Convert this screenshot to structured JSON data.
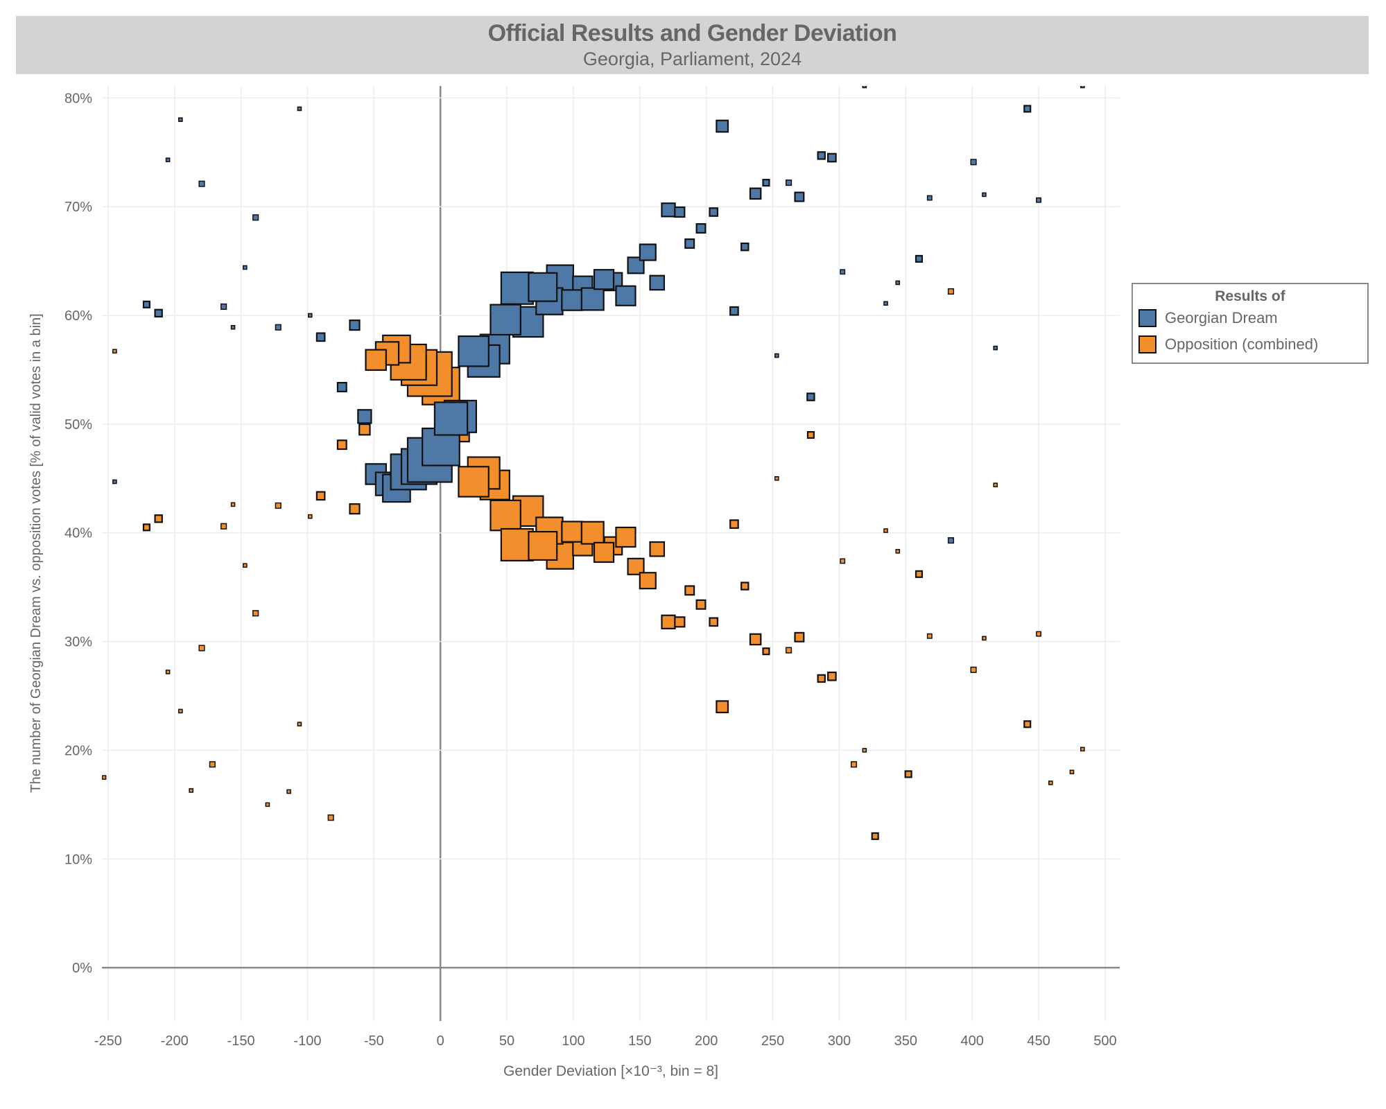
{
  "title": "Official Results and Gender Deviation",
  "subtitle": "Georgia, Parliament, 2024",
  "legend": {
    "title": "Results of",
    "items": [
      {
        "label": "Georgian Dream",
        "color": "#4e79a7"
      },
      {
        "label": "Opposition (combined)",
        "color": "#f28e2b"
      }
    ]
  },
  "chart_data": {
    "type": "scatter",
    "title": "Official Results and Gender Deviation",
    "subtitle": "Georgia, Parliament, 2024",
    "xlabel": "Gender Deviation [×10⁻³, bin = 8]",
    "ylabel": "The number of Georgian Dream vs. opposition votes [% of valid votes in a bin]",
    "xlim": [
      -254.6,
      511
    ],
    "ylim": [
      -4.9,
      81.1
    ],
    "x_ticks": [
      "-250",
      "-200",
      "-150",
      "-100",
      "-50",
      "0",
      "50",
      "100",
      "150",
      "200",
      "250",
      "300",
      "350",
      "400",
      "450",
      "500"
    ],
    "x_tick_values": [
      -250,
      -200,
      -150,
      -100,
      -50,
      0,
      50,
      100,
      150,
      200,
      250,
      300,
      350,
      400,
      450,
      500
    ],
    "y_ticks": [
      "0%",
      "10%",
      "20%",
      "30%",
      "40%",
      "50%",
      "60%",
      "70%",
      "80%"
    ],
    "y_tick_values": [
      0,
      10,
      20,
      30,
      40,
      50,
      60,
      70,
      80
    ],
    "grid": true,
    "legend_position": "right",
    "marker": "square, size proportional to bin weight",
    "series": [
      {
        "name": "Opposition (combined)",
        "color": "#f28e2b",
        "points": [
          [
            -195.5,
            23.6,
            4
          ],
          [
            -205,
            27.2,
            4
          ],
          [
            -179.5,
            29.4,
            6
          ],
          [
            -139,
            32.6,
            6
          ],
          [
            -147,
            37.0,
            4
          ],
          [
            -106,
            22.4,
            4
          ],
          [
            -221,
            40.5,
            7
          ],
          [
            -212,
            41.3,
            8
          ],
          [
            -163,
            40.6,
            6
          ],
          [
            -156,
            42.6,
            4
          ],
          [
            -122,
            42.5,
            6
          ],
          [
            -98,
            41.5,
            4
          ],
          [
            -245,
            56.7,
            4
          ],
          [
            -253,
            17.5,
            4
          ],
          [
            -187.5,
            16.3,
            4
          ],
          [
            -171.5,
            18.7,
            6
          ],
          [
            -130,
            15.0,
            4
          ],
          [
            -114,
            16.2,
            4
          ],
          [
            -82.4,
            13.8,
            6
          ],
          [
            -90,
            43.4,
            9
          ],
          [
            -64.5,
            42.2,
            11
          ],
          [
            -74,
            48.1,
            10
          ],
          [
            -57,
            49.5,
            12
          ],
          [
            8,
            49.4,
            20
          ],
          [
            15,
            49.2,
            20
          ],
          [
            0.4,
            53.5,
            42
          ],
          [
            -8,
            54.6,
            50
          ],
          [
            -16,
            55.2,
            40
          ],
          [
            -24,
            55.7,
            40
          ],
          [
            -33,
            56.9,
            31
          ],
          [
            -40,
            56.5,
            26
          ],
          [
            -48.5,
            55.9,
            23
          ],
          [
            41,
            44.4,
            33
          ],
          [
            32.6,
            45.5,
            36
          ],
          [
            25,
            44.7,
            34
          ],
          [
            66,
            42.0,
            34
          ],
          [
            49,
            41.6,
            34
          ],
          [
            90,
            37.9,
            30
          ],
          [
            82,
            40.2,
            30
          ],
          [
            57.7,
            38.9,
            36
          ],
          [
            77,
            38.8,
            32
          ],
          [
            107,
            38.8,
            22
          ],
          [
            99,
            40.1,
            23
          ],
          [
            114.5,
            40.0,
            25
          ],
          [
            130,
            38.8,
            20
          ],
          [
            123,
            38.2,
            22
          ],
          [
            139.4,
            39.6,
            22
          ],
          [
            147,
            36.9,
            18
          ],
          [
            156,
            35.6,
            18
          ],
          [
            163,
            38.5,
            16
          ],
          [
            212,
            24.0,
            13
          ],
          [
            171.5,
            31.8,
            15
          ],
          [
            180,
            31.8,
            11
          ],
          [
            205.5,
            31.8,
            9
          ],
          [
            187.5,
            34.7,
            10
          ],
          [
            196,
            33.4,
            10
          ],
          [
            237,
            30.2,
            12
          ],
          [
            245,
            29.1,
            7
          ],
          [
            229,
            35.1,
            8
          ],
          [
            270,
            30.4,
            10
          ],
          [
            262,
            29.2,
            6
          ],
          [
            286.6,
            26.6,
            8
          ],
          [
            294.5,
            26.8,
            9
          ],
          [
            221,
            40.8,
            9
          ],
          [
            253,
            45.0,
            4
          ],
          [
            278.6,
            49.0,
            7
          ],
          [
            302.5,
            37.4,
            5
          ],
          [
            319,
            20.0,
            4
          ],
          [
            311,
            18.7,
            6
          ],
          [
            327,
            12.1,
            7
          ],
          [
            335,
            40.2,
            4
          ],
          [
            344,
            38.3,
            4
          ],
          [
            352,
            17.8,
            7
          ],
          [
            360,
            36.2,
            7
          ],
          [
            368,
            30.5,
            5
          ],
          [
            384,
            62.2,
            6
          ],
          [
            401,
            27.4,
            6
          ],
          [
            409,
            30.3,
            4
          ],
          [
            417.5,
            44.4,
            4
          ],
          [
            441.5,
            22.4,
            7
          ],
          [
            450,
            30.7,
            5
          ],
          [
            459,
            17.0,
            4
          ],
          [
            475,
            18.0,
            4
          ],
          [
            483,
            20.1,
            4
          ]
        ]
      },
      {
        "name": "Georgian Dream",
        "color": "#4e79a7",
        "points": [
          [
            -195.5,
            78.0,
            4
          ],
          [
            -205,
            74.3,
            4
          ],
          [
            -179.5,
            72.1,
            6
          ],
          [
            -139,
            69.0,
            6
          ],
          [
            -147,
            64.4,
            4
          ],
          [
            -106,
            79.0,
            4
          ],
          [
            -221,
            61.0,
            7
          ],
          [
            -212,
            60.2,
            8
          ],
          [
            -163,
            60.8,
            6
          ],
          [
            -156,
            58.9,
            4
          ],
          [
            -122,
            58.9,
            6
          ],
          [
            -98,
            60.0,
            4
          ],
          [
            -245,
            44.7,
            4
          ],
          [
            -90,
            58.0,
            9
          ],
          [
            -64.5,
            59.1,
            11
          ],
          [
            -74,
            53.4,
            10
          ],
          [
            -57,
            50.7,
            15
          ],
          [
            -48.5,
            45.4,
            23
          ],
          [
            -40,
            44.5,
            26
          ],
          [
            -33,
            44.1,
            31
          ],
          [
            -24,
            45.6,
            40
          ],
          [
            -16,
            46.1,
            40
          ],
          [
            -8,
            46.7,
            50
          ],
          [
            0.4,
            47.9,
            42
          ],
          [
            15,
            50.7,
            36
          ],
          [
            8,
            50.5,
            37
          ],
          [
            41,
            56.9,
            33
          ],
          [
            32.6,
            55.8,
            36
          ],
          [
            25,
            56.7,
            34
          ],
          [
            66,
            59.4,
            34
          ],
          [
            49,
            59.6,
            34
          ],
          [
            90,
            63.4,
            30
          ],
          [
            82,
            61.3,
            30
          ],
          [
            57.7,
            62.5,
            36
          ],
          [
            77,
            62.6,
            32
          ],
          [
            107,
            62.7,
            22
          ],
          [
            99,
            61.4,
            23
          ],
          [
            114.5,
            61.5,
            25
          ],
          [
            130,
            63.1,
            20
          ],
          [
            123,
            63.3,
            22
          ],
          [
            139.4,
            61.8,
            22
          ],
          [
            147,
            64.6,
            18
          ],
          [
            156,
            65.8,
            18
          ],
          [
            163,
            63.0,
            16
          ],
          [
            212,
            77.4,
            13
          ],
          [
            171.5,
            69.7,
            15
          ],
          [
            180,
            69.5,
            11
          ],
          [
            205.5,
            69.5,
            9
          ],
          [
            187.5,
            66.6,
            10
          ],
          [
            196,
            68.0,
            10
          ],
          [
            237,
            71.2,
            12
          ],
          [
            245,
            72.2,
            7
          ],
          [
            229,
            66.3,
            8
          ],
          [
            270,
            70.9,
            10
          ],
          [
            262,
            72.2,
            6
          ],
          [
            286.6,
            74.7,
            8
          ],
          [
            294.5,
            74.5,
            9
          ],
          [
            221,
            60.4,
            9
          ],
          [
            253,
            56.3,
            4
          ],
          [
            278.6,
            52.5,
            8
          ],
          [
            302.5,
            64.0,
            5
          ],
          [
            319,
            81.1,
            4
          ],
          [
            335,
            61.1,
            4
          ],
          [
            344,
            63.0,
            4
          ],
          [
            360,
            65.2,
            7
          ],
          [
            368,
            70.8,
            5
          ],
          [
            384,
            39.3,
            6
          ],
          [
            401,
            74.1,
            6
          ],
          [
            409,
            71.1,
            4
          ],
          [
            417.5,
            57.0,
            4
          ],
          [
            441.5,
            79.0,
            7
          ],
          [
            450,
            70.6,
            5
          ],
          [
            483,
            81.1,
            4
          ]
        ]
      }
    ]
  }
}
